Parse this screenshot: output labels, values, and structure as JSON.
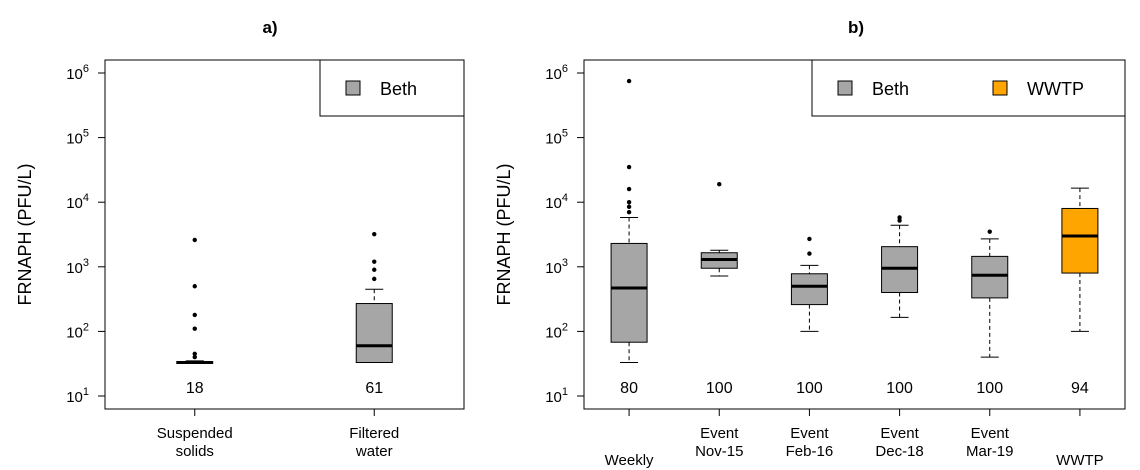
{
  "colors": {
    "Beth": "#a6a6a6",
    "WWTP": "#ffa500"
  },
  "chart_data": [
    {
      "type": "boxplot",
      "title": "a)",
      "ylabel": "FRNAPH (PFU/L)",
      "yscale": "log10",
      "ylim": [
        10,
        1000000
      ],
      "yticks": [
        10,
        100,
        1000,
        10000,
        100000,
        1000000
      ],
      "legend": {
        "placement": "top-right",
        "entries": [
          "Beth"
        ]
      },
      "groups": [
        {
          "label": [
            "Suspended",
            "solids"
          ],
          "n": "18",
          "series": "Beth",
          "q1": 32,
          "median": 33,
          "q3": 34,
          "whisker_low": 32,
          "whisker_high": 35,
          "outliers": [
            2600,
            500,
            180,
            110,
            45,
            40
          ]
        },
        {
          "label": [
            "Filtered",
            "water"
          ],
          "n": "61",
          "series": "Beth",
          "q1": 33,
          "median": 60,
          "q3": 270,
          "whisker_low": 33,
          "whisker_high": 450,
          "outliers": [
            3200,
            1200,
            900,
            650
          ]
        }
      ]
    },
    {
      "type": "boxplot",
      "title": "b)",
      "ylabel": "FRNAPH (PFU/L)",
      "yscale": "log10",
      "ylim": [
        10,
        1000000
      ],
      "yticks": [
        10,
        100,
        1000,
        10000,
        100000,
        1000000
      ],
      "legend": {
        "placement": "top-right",
        "entries": [
          "Beth",
          "WWTP"
        ]
      },
      "groups": [
        {
          "label": [
            "Weekly"
          ],
          "n": "80",
          "series": "Beth",
          "q1": 68,
          "median": 470,
          "q3": 2300,
          "whisker_low": 33,
          "whisker_high": 5800,
          "outliers": [
            750000,
            35000,
            16000,
            10000,
            8500,
            7000
          ]
        },
        {
          "label": [
            "Event",
            "Nov-15"
          ],
          "n": "100",
          "series": "Beth",
          "q1": 950,
          "median": 1300,
          "q3": 1650,
          "whisker_low": 720,
          "whisker_high": 1800,
          "outliers": [
            19000
          ]
        },
        {
          "label": [
            "Event",
            "Feb-16"
          ],
          "n": "100",
          "series": "Beth",
          "q1": 260,
          "median": 500,
          "q3": 780,
          "whisker_low": 100,
          "whisker_high": 1050,
          "outliers": [
            2700,
            1600
          ]
        },
        {
          "label": [
            "Event",
            "Dec-18"
          ],
          "n": "100",
          "series": "Beth",
          "q1": 400,
          "median": 950,
          "q3": 2050,
          "whisker_low": 165,
          "whisker_high": 4400,
          "outliers": [
            5800,
            5200
          ]
        },
        {
          "label": [
            "Event",
            "Mar-19"
          ],
          "n": "100",
          "series": "Beth",
          "q1": 330,
          "median": 740,
          "q3": 1450,
          "whisker_low": 40,
          "whisker_high": 2700,
          "outliers": [
            3500
          ]
        },
        {
          "label": [
            "WWTP"
          ],
          "n": "94",
          "series": "WWTP",
          "q1": 800,
          "median": 3000,
          "q3": 8000,
          "whisker_low": 100,
          "whisker_high": 16500,
          "outliers": []
        }
      ]
    }
  ]
}
